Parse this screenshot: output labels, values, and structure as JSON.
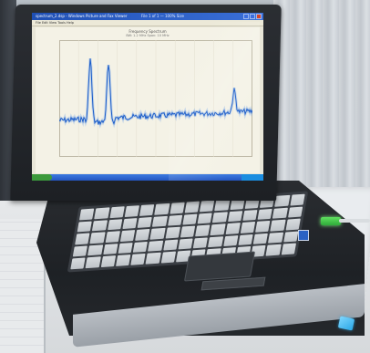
{
  "window": {
    "title": "spectrum_2.dsp - Windows Picture and Fax Viewer",
    "status_text": "File 1 of 1 — 100% Size",
    "menu": "File  Edit  View  Tools  Help"
  },
  "plot": {
    "title": "Frequency Spectrum",
    "subtitle": "BW: 1.2 MHz   Span: 10 MHz"
  },
  "colors": {
    "trace": "#1a5cc9",
    "trace_glow": "#6fa3e8",
    "usb_led": "#46d64a",
    "clip": "#2aa7e6"
  }
}
